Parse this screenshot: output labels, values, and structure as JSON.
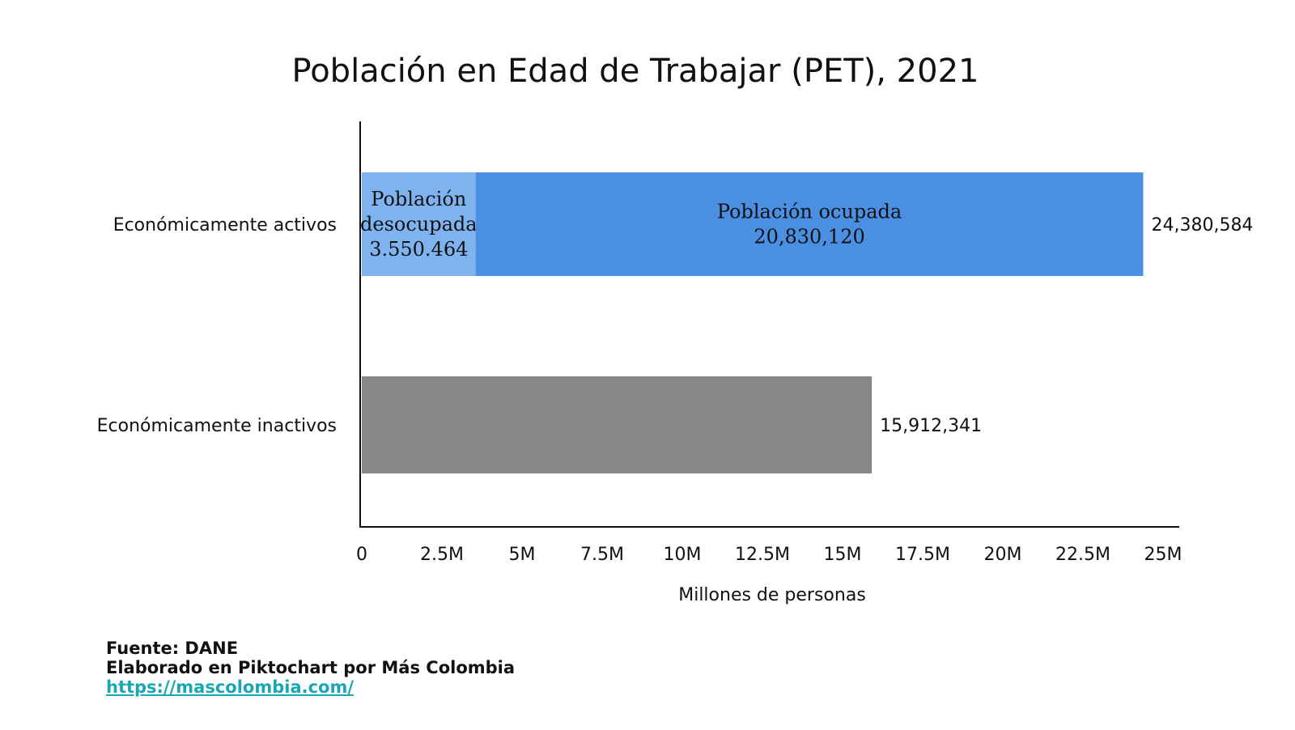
{
  "chart_data": {
    "type": "bar",
    "orientation": "horizontal",
    "stacked": true,
    "title": "Población en Edad de Trabajar (PET), 2021",
    "xlabel": "Millones de personas",
    "ylabel": "",
    "xlim": [
      0,
      25000000
    ],
    "x_ticks": [
      0,
      2500000,
      5000000,
      7500000,
      10000000,
      12500000,
      15000000,
      17500000,
      20000000,
      22500000,
      25000000
    ],
    "x_tick_labels": [
      "0",
      "2.5M",
      "5M",
      "7.5M",
      "10M",
      "12.5M",
      "15M",
      "17.5M",
      "20M",
      "22.5M",
      "25M"
    ],
    "grid": false,
    "categories": [
      "Económicamente activos",
      "Económicamente inactivos"
    ],
    "bars": [
      {
        "category": "Económicamente activos",
        "total": 24380584,
        "total_label": "24,380,584",
        "segments": [
          {
            "name": "Población desocupada",
            "value": 3550464,
            "value_label": "3.550.464",
            "color": "#7eb3f0",
            "label_lines": [
              "Población",
              "desocupada",
              "3.550.464"
            ]
          },
          {
            "name": "Población ocupada",
            "value": 20830120,
            "value_label": "20,830,120",
            "color": "#4a8fe2",
            "label_lines": [
              "Población ocupada",
              "20,830,120"
            ]
          }
        ]
      },
      {
        "category": "Económicamente inactivos",
        "total": 15912341,
        "total_label": "15,912,341",
        "segments": [
          {
            "name": "",
            "value": 15912341,
            "color": "#878787",
            "label_lines": []
          }
        ]
      }
    ]
  },
  "footer": {
    "source": "Fuente: DANE",
    "credit": "Elaborado en Piktochart por Más Colombia",
    "url": "https://mascolombia.com/"
  }
}
